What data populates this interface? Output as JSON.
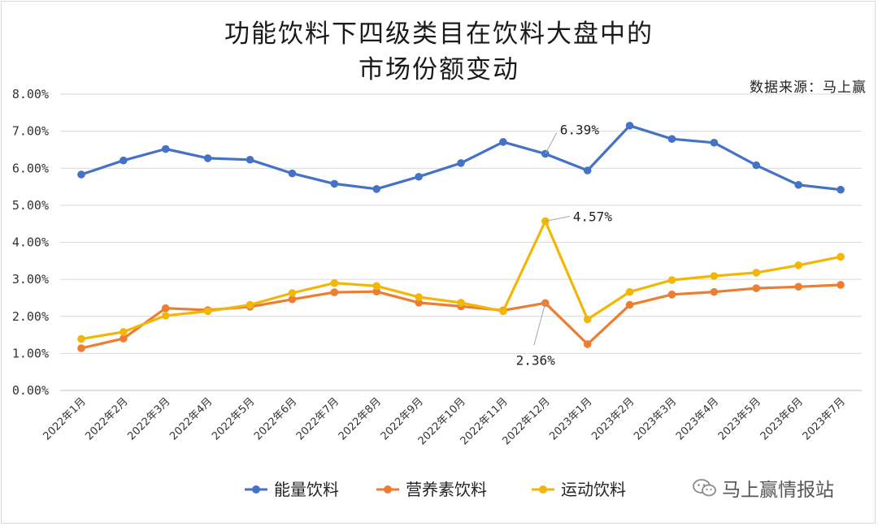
{
  "chart_data": {
    "type": "line",
    "title_lines": [
      "功能饮料下四级类目在饮料大盘中的",
      "市场份额变动"
    ],
    "source": "数据来源：马上赢",
    "categories": [
      "2022年1月",
      "2022年2月",
      "2022年3月",
      "2022年4月",
      "2022年5月",
      "2022年6月",
      "2022年7月",
      "2022年8月",
      "2022年9月",
      "2022年10月",
      "2022年11月",
      "2022年12月",
      "2023年1月",
      "2023年2月",
      "2023年3月",
      "2023年4月",
      "2023年5月",
      "2023年6月",
      "2023年7月"
    ],
    "y_ticks": [
      "0.00%",
      "1.00%",
      "2.00%",
      "3.00%",
      "4.00%",
      "5.00%",
      "6.00%",
      "7.00%",
      "8.00%"
    ],
    "ylim": [
      0,
      8
    ],
    "grid": true,
    "legend_position": "bottom",
    "series": [
      {
        "name": "能量饮料",
        "color": "#4472c4",
        "values": [
          5.83,
          6.21,
          6.52,
          6.27,
          6.23,
          5.86,
          5.58,
          5.44,
          5.77,
          6.14,
          6.71,
          6.39,
          5.94,
          7.15,
          6.79,
          6.69,
          6.08,
          5.55,
          5.42
        ]
      },
      {
        "name": "营养素饮料",
        "color": "#ed7d31",
        "values": [
          1.14,
          1.4,
          2.22,
          2.17,
          2.26,
          2.46,
          2.65,
          2.67,
          2.37,
          2.27,
          2.16,
          2.36,
          1.25,
          2.31,
          2.59,
          2.66,
          2.76,
          2.8,
          2.85
        ]
      },
      {
        "name": "运动饮料",
        "color": "#f2b705",
        "values": [
          1.39,
          1.58,
          2.02,
          2.14,
          2.31,
          2.63,
          2.9,
          2.82,
          2.52,
          2.37,
          2.14,
          4.57,
          1.92,
          2.66,
          2.98,
          3.09,
          3.18,
          3.38,
          3.61
        ]
      }
    ],
    "annotations": [
      {
        "series": 0,
        "index": 11,
        "text": "6.39%"
      },
      {
        "series": 2,
        "index": 11,
        "text": "4.57%"
      },
      {
        "series": 1,
        "index": 11,
        "text": "2.36%"
      }
    ]
  },
  "watermark": {
    "text": "马上赢情报站",
    "icon": "wechat-icon"
  }
}
